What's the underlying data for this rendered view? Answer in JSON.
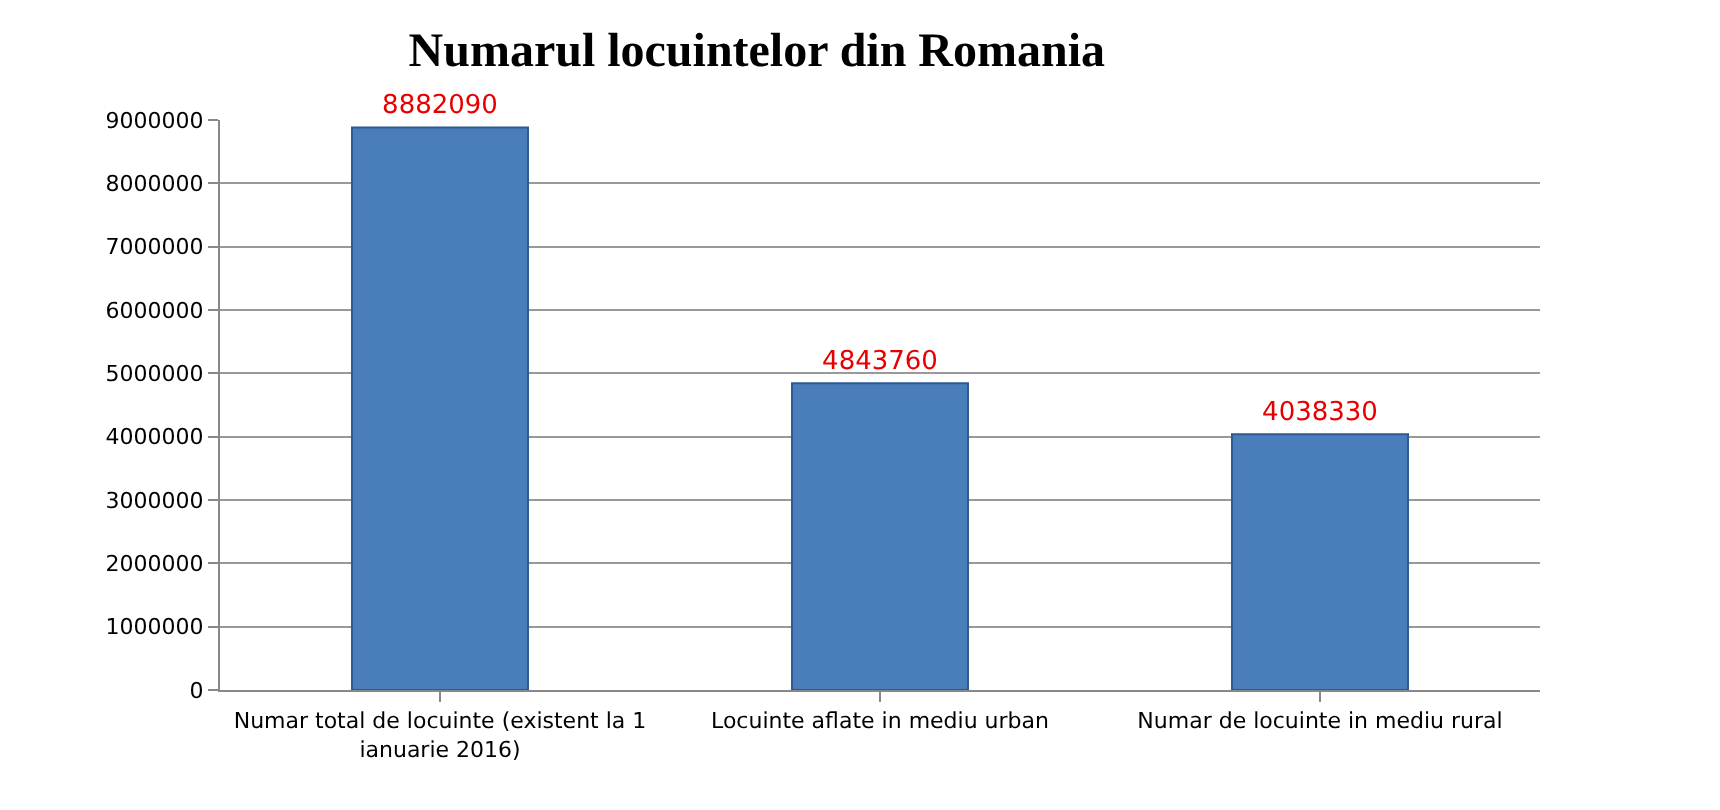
{
  "chart_data": {
    "type": "bar",
    "title": "Numarul locuintelor din Romania",
    "categories": [
      "Numar total de locuinte (existent la 1 ianuarie 2016)",
      "Locuinte aflate in mediu urban",
      "Numar de locuinte in mediu rural"
    ],
    "values": [
      8882090,
      4843760,
      4038330
    ],
    "color": "#4a7ebb",
    "ylim": [
      0,
      9000000
    ],
    "yticks": [
      0,
      1000000,
      2000000,
      3000000,
      4000000,
      5000000,
      6000000,
      7000000,
      8000000,
      9000000
    ],
    "grid": "y",
    "data_labels": true,
    "legend": false
  }
}
